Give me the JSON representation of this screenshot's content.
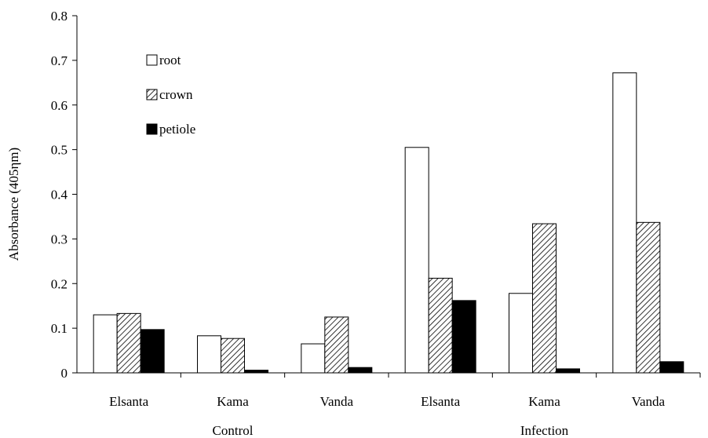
{
  "chart_data": {
    "type": "bar",
    "title": "",
    "xlabel": "",
    "ylabel": "Absorbance (405ηm)",
    "ylim": [
      0,
      0.8
    ],
    "yticks": [
      "0",
      "0.1",
      "0.2",
      "0.3",
      "0.4",
      "0.5",
      "0.6",
      "0.7",
      "0.8"
    ],
    "grid": false,
    "legend_position": "top-left",
    "categories": [
      "Elsanta",
      "Kama",
      "Vanda",
      "Elsanta",
      "Kama",
      "Vanda"
    ],
    "groups": [
      {
        "label": "Control",
        "categories": [
          "Elsanta",
          "Kama",
          "Vanda"
        ]
      },
      {
        "label": "Infection",
        "categories": [
          "Elsanta",
          "Kama",
          "Vanda"
        ]
      }
    ],
    "series": [
      {
        "name": "root",
        "fill": "white",
        "values": [
          0.13,
          0.083,
          0.065,
          0.505,
          0.178,
          0.672
        ]
      },
      {
        "name": "crown",
        "fill": "hatched",
        "values": [
          0.133,
          0.077,
          0.125,
          0.212,
          0.334,
          0.337
        ]
      },
      {
        "name": "petiole",
        "fill": "black",
        "values": [
          0.097,
          0.006,
          0.012,
          0.162,
          0.009,
          0.025
        ]
      }
    ]
  }
}
